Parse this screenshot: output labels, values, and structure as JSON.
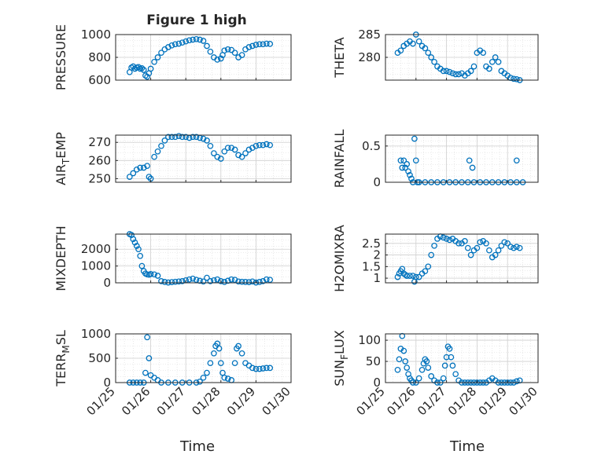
{
  "figure": {
    "title": "Figure 1 high",
    "marker_color": "#0072bd",
    "x_label": "Time",
    "x_ticks": [
      "01/25",
      "01/26",
      "01/27",
      "01/28",
      "01/29",
      "01/30"
    ]
  },
  "chart_data": [
    {
      "type": "scatter",
      "ylabel": "PRESSURE",
      "ylim": [
        600,
        1000
      ],
      "y_ticks": [
        "600",
        "800",
        "1000"
      ],
      "xlim": [
        "01/25",
        "01/30"
      ],
      "grid": true,
      "x_days": [
        25.4,
        25.45,
        25.5,
        25.55,
        25.6,
        25.65,
        25.7,
        25.75,
        25.8,
        25.85,
        25.9,
        25.95,
        26.0,
        26.1,
        26.2,
        26.3,
        26.4,
        26.5,
        26.6,
        26.7,
        26.8,
        26.9,
        27.0,
        27.1,
        27.2,
        27.3,
        27.4,
        27.5,
        27.6,
        27.7,
        27.8,
        27.9,
        28.0,
        28.05,
        28.1,
        28.2,
        28.3,
        28.4,
        28.5,
        28.6,
        28.7,
        28.8,
        28.9,
        29.0,
        29.1,
        29.2,
        29.3,
        29.4
      ],
      "values": [
        670,
        710,
        720,
        700,
        710,
        715,
        700,
        705,
        690,
        640,
        630,
        660,
        700,
        760,
        800,
        840,
        870,
        890,
        905,
        915,
        920,
        930,
        940,
        950,
        955,
        960,
        955,
        945,
        900,
        850,
        800,
        780,
        790,
        820,
        860,
        870,
        865,
        840,
        800,
        820,
        870,
        890,
        900,
        910,
        915,
        915,
        920,
        918
      ]
    },
    {
      "type": "scatter",
      "ylabel": "THETA",
      "ylim": [
        275,
        285
      ],
      "y_ticks": [
        "280",
        "285"
      ],
      "xlim": [
        "01/25",
        "01/30"
      ],
      "grid": true,
      "x_days": [
        25.4,
        25.5,
        25.6,
        25.7,
        25.8,
        25.9,
        26.0,
        26.1,
        26.2,
        26.3,
        26.4,
        26.5,
        26.6,
        26.7,
        26.8,
        26.9,
        27.0,
        27.1,
        27.2,
        27.3,
        27.4,
        27.5,
        27.6,
        27.7,
        27.8,
        27.9,
        28.0,
        28.1,
        28.2,
        28.3,
        28.4,
        28.5,
        28.6,
        28.7,
        28.8,
        28.9,
        29.0,
        29.1,
        29.2,
        29.3,
        29.4
      ],
      "values": [
        281,
        281.5,
        282.5,
        283,
        283.5,
        283,
        285,
        283.5,
        282.5,
        282,
        281,
        280,
        279,
        278,
        277.5,
        277,
        277,
        276.8,
        276.5,
        276.3,
        276.3,
        276.5,
        276,
        276.5,
        277,
        278,
        281,
        281.5,
        281,
        278,
        277.5,
        279,
        280,
        279,
        277,
        276.5,
        276,
        275.5,
        275.3,
        275.2,
        275
      ]
    },
    {
      "type": "scatter",
      "ylabel": "AIR_TEMP",
      "ylim": [
        248,
        274
      ],
      "y_ticks": [
        "250",
        "260",
        "270"
      ],
      "xlim": [
        "01/25",
        "01/30"
      ],
      "grid": true,
      "x_days": [
        25.4,
        25.5,
        25.6,
        25.7,
        25.8,
        25.9,
        25.95,
        26.0,
        26.1,
        26.2,
        26.3,
        26.4,
        26.5,
        26.6,
        26.7,
        26.8,
        26.9,
        27.0,
        27.1,
        27.2,
        27.3,
        27.4,
        27.5,
        27.6,
        27.7,
        27.8,
        27.9,
        28.0,
        28.1,
        28.2,
        28.3,
        28.4,
        28.5,
        28.6,
        28.7,
        28.8,
        28.9,
        29.0,
        29.1,
        29.2,
        29.3,
        29.4
      ],
      "values": [
        251,
        253,
        255,
        256,
        256,
        257,
        251,
        250,
        262,
        265,
        268,
        271,
        273,
        273,
        273,
        273.5,
        273,
        273,
        272.5,
        273,
        273,
        272.5,
        272,
        271,
        268,
        264,
        262,
        261,
        265,
        267,
        267,
        266,
        263,
        262,
        264,
        266,
        267,
        268,
        268.5,
        268.5,
        269,
        268.5
      ]
    },
    {
      "type": "scatter",
      "ylabel": "RAINFALL",
      "ylim": [
        0,
        0.65
      ],
      "y_ticks": [
        "0",
        "0.5"
      ],
      "xlim": [
        "01/25",
        "01/30"
      ],
      "grid": true,
      "x_days": [
        25.5,
        25.55,
        25.6,
        25.65,
        25.7,
        25.75,
        25.8,
        25.85,
        25.9,
        25.95,
        26.0,
        26.05,
        26.1,
        26.3,
        26.5,
        26.7,
        26.9,
        27.1,
        27.3,
        27.5,
        27.7,
        27.9,
        28.1,
        28.3,
        28.5,
        28.7,
        28.9,
        29.1,
        29.3,
        29.5,
        27.75,
        27.85,
        29.3
      ],
      "values": [
        0.3,
        0.2,
        0.3,
        0.2,
        0.25,
        0.15,
        0.1,
        0.05,
        0.0,
        0.6,
        0.3,
        0.0,
        0.0,
        0.0,
        0.0,
        0.0,
        0.0,
        0.0,
        0.0,
        0.0,
        0.0,
        0.0,
        0.0,
        0.0,
        0.0,
        0.0,
        0.0,
        0.0,
        0.0,
        0.0,
        0.3,
        0.2,
        0.3
      ]
    },
    {
      "type": "scatter",
      "ylabel": "MIXDEPTH",
      "ylim": [
        0,
        2900
      ],
      "y_ticks": [
        "0",
        "1000",
        "2000"
      ],
      "xlim": [
        "01/25",
        "01/30"
      ],
      "grid": true,
      "x_days": [
        25.4,
        25.45,
        25.5,
        25.55,
        25.6,
        25.65,
        25.7,
        25.75,
        25.8,
        25.85,
        25.9,
        25.95,
        26.0,
        26.1,
        26.2,
        26.3,
        26.4,
        26.5,
        26.6,
        26.7,
        26.8,
        26.9,
        27.0,
        27.1,
        27.2,
        27.3,
        27.4,
        27.5,
        27.6,
        27.7,
        27.8,
        27.9,
        28.0,
        28.1,
        28.2,
        28.3,
        28.4,
        28.5,
        28.6,
        28.7,
        28.8,
        28.9,
        29.0,
        29.1,
        29.2,
        29.3,
        29.4
      ],
      "values": [
        2900,
        2850,
        2600,
        2400,
        2200,
        2000,
        1600,
        1000,
        700,
        550,
        500,
        480,
        520,
        500,
        420,
        100,
        50,
        20,
        40,
        60,
        80,
        100,
        150,
        200,
        250,
        180,
        120,
        80,
        300,
        100,
        150,
        200,
        100,
        50,
        120,
        200,
        180,
        80,
        60,
        50,
        40,
        80,
        20,
        50,
        100,
        200,
        180
      ]
    },
    {
      "type": "scatter",
      "ylabel": "H2OMIXRA",
      "ylim": [
        0.8,
        2.9
      ],
      "y_ticks": [
        "1",
        "1.5",
        "2",
        "2.5"
      ],
      "xlim": [
        "01/25",
        "01/30"
      ],
      "grid": true,
      "x_days": [
        25.4,
        25.45,
        25.5,
        25.55,
        25.6,
        25.65,
        25.7,
        25.8,
        25.9,
        25.95,
        26.0,
        26.1,
        26.2,
        26.3,
        26.4,
        26.5,
        26.6,
        26.7,
        26.8,
        26.9,
        27.0,
        27.1,
        27.2,
        27.3,
        27.4,
        27.5,
        27.6,
        27.7,
        27.8,
        27.9,
        28.0,
        28.1,
        28.2,
        28.3,
        28.4,
        28.5,
        28.6,
        28.7,
        28.8,
        28.9,
        29.0,
        29.1,
        29.2,
        29.3,
        29.4
      ],
      "values": [
        1.05,
        1.2,
        1.3,
        1.4,
        1.2,
        1.15,
        1.1,
        1.1,
        1.1,
        0.85,
        1.05,
        1.05,
        1.2,
        1.3,
        1.5,
        2.0,
        2.4,
        2.7,
        2.8,
        2.75,
        2.7,
        2.65,
        2.7,
        2.6,
        2.5,
        2.5,
        2.6,
        2.3,
        2.0,
        2.2,
        2.3,
        2.55,
        2.6,
        2.5,
        2.2,
        1.9,
        2.0,
        2.2,
        2.4,
        2.55,
        2.5,
        2.35,
        2.3,
        2.35,
        2.3
      ]
    },
    {
      "type": "scatter",
      "ylabel": "TERR_MSL",
      "ylim": [
        0,
        1000
      ],
      "y_ticks": [
        "0",
        "500",
        "1000"
      ],
      "xlim": [
        "01/25",
        "01/30"
      ],
      "grid": true,
      "x_days": [
        25.4,
        25.5,
        25.6,
        25.7,
        25.8,
        25.85,
        25.9,
        25.95,
        26.0,
        26.1,
        26.2,
        26.3,
        26.5,
        26.7,
        26.9,
        27.1,
        27.3,
        27.4,
        27.5,
        27.6,
        27.7,
        27.8,
        27.85,
        27.9,
        27.95,
        28.0,
        28.05,
        28.1,
        28.2,
        28.3,
        28.4,
        28.45,
        28.5,
        28.6,
        28.7,
        28.8,
        28.9,
        29.0,
        29.1,
        29.2,
        29.3,
        29.4
      ],
      "values": [
        0,
        0,
        0,
        0,
        0,
        200,
        930,
        500,
        150,
        100,
        50,
        0,
        0,
        0,
        0,
        0,
        0,
        20,
        100,
        200,
        400,
        600,
        750,
        800,
        700,
        400,
        200,
        100,
        80,
        50,
        400,
        700,
        750,
        600,
        400,
        350,
        300,
        280,
        280,
        290,
        300,
        300
      ]
    },
    {
      "type": "scatter",
      "ylabel": "SUN_FLUX",
      "ylim": [
        0,
        115
      ],
      "y_ticks": [
        "0",
        "50",
        "100"
      ],
      "xlim": [
        "01/25",
        "01/30"
      ],
      "grid": true,
      "x_days": [
        25.4,
        25.45,
        25.5,
        25.55,
        25.6,
        25.65,
        25.7,
        25.75,
        25.8,
        25.85,
        25.9,
        26.0,
        26.1,
        26.2,
        26.25,
        26.3,
        26.35,
        26.4,
        26.5,
        26.6,
        26.7,
        26.8,
        26.9,
        26.95,
        27.0,
        27.05,
        27.1,
        27.15,
        27.2,
        27.3,
        27.4,
        27.5,
        27.6,
        27.7,
        27.8,
        27.9,
        28.0,
        28.1,
        28.2,
        28.3,
        28.4,
        28.5,
        28.6,
        28.7,
        28.8,
        28.9,
        29.0,
        29.1,
        29.2,
        29.3,
        29.4
      ],
      "values": [
        30,
        55,
        80,
        110,
        75,
        50,
        35,
        20,
        10,
        5,
        0,
        0,
        10,
        30,
        45,
        55,
        50,
        35,
        15,
        5,
        0,
        0,
        10,
        40,
        60,
        85,
        80,
        60,
        40,
        20,
        5,
        0,
        0,
        0,
        0,
        0,
        0,
        0,
        0,
        0,
        5,
        10,
        5,
        0,
        0,
        0,
        0,
        0,
        0,
        3,
        5
      ]
    }
  ]
}
